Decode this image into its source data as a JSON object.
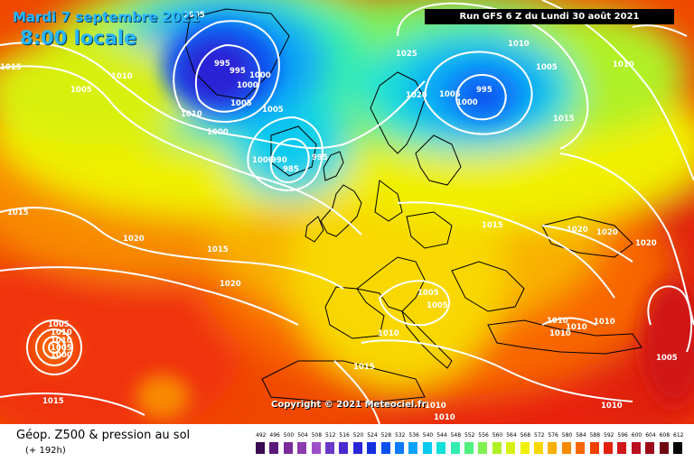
{
  "header": {
    "date": "Mardi 7 septembre 2021",
    "time": "8:00 locale",
    "run": "Run GFS 6 Z du Lundi 30 août 2021"
  },
  "copyright": "Copyright © 2021 Meteociel.fr",
  "legend": {
    "title": "Géop. Z500 & pression au sol",
    "subtitle": "(+ 192h)",
    "ticks": [
      "492",
      "496",
      "500",
      "504",
      "508",
      "512",
      "516",
      "520",
      "524",
      "528",
      "532",
      "536",
      "540",
      "544",
      "548",
      "552",
      "556",
      "560",
      "564",
      "568",
      "572",
      "576",
      "580",
      "584",
      "588",
      "592",
      "596",
      "600",
      "604",
      "608",
      "612"
    ],
    "colors": [
      "#3a0a52",
      "#5a1a7a",
      "#7a2b9a",
      "#8c3cb0",
      "#9e4fc8",
      "#6b38c8",
      "#4a2ad0",
      "#2b24d6",
      "#1230e0",
      "#0a52f0",
      "#0a7af8",
      "#0aa2f8",
      "#0acaf0",
      "#12e0d8",
      "#30ecb0",
      "#50f080",
      "#80f050",
      "#b0f028",
      "#d8f010",
      "#f0f000",
      "#f8d800",
      "#f8b000",
      "#f88a00",
      "#f86600",
      "#f04000",
      "#e42010",
      "#d01818",
      "#b81020",
      "#9a0a1a",
      "#700812",
      "#000000"
    ]
  },
  "pressure_labels": [
    "1005",
    "1015",
    "1010",
    "1005",
    "995",
    "995",
    "1000",
    "1000",
    "1005",
    "1010",
    "1000",
    "1005",
    "1000",
    "990",
    "985",
    "995",
    "1025",
    "1020",
    "1005",
    "995",
    "1000",
    "1010",
    "1005",
    "1010",
    "1015",
    "1015",
    "1020",
    "1015",
    "1020",
    "1015",
    "1020",
    "1020",
    "1020",
    "1005",
    "1005",
    "1010",
    "1010",
    "1010",
    "1010",
    "1010",
    "1010",
    "1010",
    "1010",
    "1005",
    "1005",
    "1015",
    "1015",
    "1010",
    "1010",
    "1005",
    "1000"
  ]
}
